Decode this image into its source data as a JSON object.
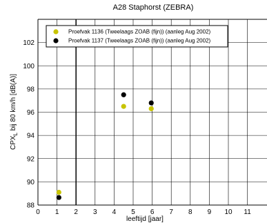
{
  "chart_data": {
    "type": "scatter",
    "title": "A28 Staphorst (ZEBRA)",
    "xlabel": "leeftijd [jaar]",
    "ylabel_prefix": "CPX",
    "ylabel_subscript": "L",
    "ylabel_suffix": " bij 80 km/h [dB(A)]",
    "xlim": [
      0,
      12
    ],
    "ylim": [
      88,
      104
    ],
    "x_ticks": [
      "0",
      "1",
      "2",
      "3",
      "4",
      "5",
      "6",
      "7",
      "8",
      "9",
      "10",
      "11"
    ],
    "y_ticks": [
      "88",
      "90",
      "92",
      "94",
      "96",
      "98",
      "100",
      "102"
    ],
    "grid": true,
    "legend_position": "top-left",
    "series": [
      {
        "name": "Proefvak 1136 (Tweelaags ZOAB (fijn)) (aanleg Aug 2002)",
        "color": "#c8c400",
        "points": [
          {
            "x": 1.1,
            "y": 89.1
          },
          {
            "x": 4.5,
            "y": 96.5
          },
          {
            "x": 5.95,
            "y": 96.3
          }
        ]
      },
      {
        "name": "Proefvak 1137 (Tweelaags ZOAB (fijn)) (aanleg Aug 2002)",
        "color": "#000000",
        "points": [
          {
            "x": 1.1,
            "y": 88.65
          },
          {
            "x": 4.5,
            "y": 97.5
          },
          {
            "x": 5.95,
            "y": 96.8
          }
        ]
      }
    ],
    "reference_line_x": 2
  }
}
